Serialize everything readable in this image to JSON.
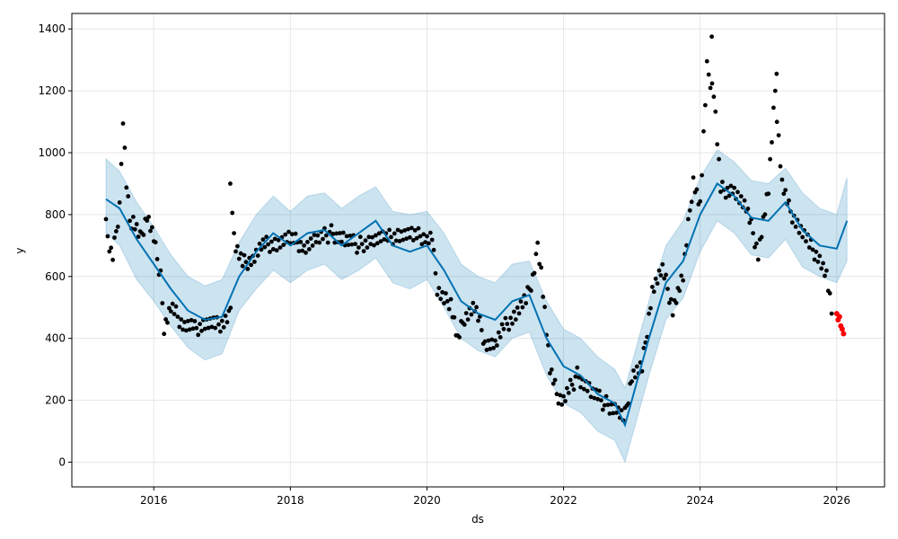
{
  "chart_data": {
    "type": "line",
    "title": "",
    "xlabel": "ds",
    "ylabel": "y",
    "xlim": [
      2014.8,
      2026.7
    ],
    "ylim": [
      -80,
      1450
    ],
    "x_ticks": [
      2016,
      2018,
      2020,
      2022,
      2024,
      2026
    ],
    "x_tick_labels": [
      "2016",
      "2018",
      "2020",
      "2022",
      "2024",
      "2026"
    ],
    "y_ticks": [
      0,
      200,
      400,
      600,
      800,
      1000,
      1200,
      1400
    ],
    "y_tick_labels": [
      "0",
      "200",
      "400",
      "600",
      "800",
      "1000",
      "1200",
      "1400"
    ],
    "grid": true,
    "colors": {
      "forecast": "#0072B2",
      "band": "#0072B2",
      "observed": "#000000",
      "recent": "#ff0000"
    },
    "forecast": {
      "x": [
        2015.3,
        2015.5,
        2015.75,
        2016.0,
        2016.25,
        2016.5,
        2016.75,
        2017.0,
        2017.25,
        2017.5,
        2017.75,
        2018.0,
        2018.25,
        2018.5,
        2018.75,
        2019.0,
        2019.25,
        2019.5,
        2019.75,
        2020.0,
        2020.25,
        2020.5,
        2020.75,
        2021.0,
        2021.25,
        2021.5,
        2021.75,
        2022.0,
        2022.25,
        2022.5,
        2022.75,
        2022.9,
        2023.0,
        2023.25,
        2023.5,
        2023.75,
        2024.0,
        2024.25,
        2024.5,
        2024.75,
        2025.0,
        2025.25,
        2025.5,
        2025.75,
        2026.0,
        2026.15
      ],
      "yhat": [
        850,
        820,
        720,
        640,
        560,
        490,
        460,
        470,
        600,
        680,
        740,
        700,
        740,
        750,
        700,
        740,
        780,
        700,
        680,
        700,
        620,
        520,
        480,
        460,
        520,
        540,
        400,
        310,
        280,
        220,
        190,
        120,
        200,
        400,
        580,
        650,
        800,
        900,
        860,
        790,
        780,
        840,
        750,
        700,
        690,
        780
      ],
      "lower": [
        740,
        700,
        590,
        520,
        440,
        370,
        330,
        350,
        490,
        560,
        620,
        580,
        620,
        640,
        590,
        620,
        660,
        580,
        560,
        590,
        500,
        400,
        360,
        340,
        400,
        420,
        280,
        190,
        160,
        100,
        70,
        0,
        80,
        280,
        460,
        530,
        680,
        780,
        740,
        670,
        660,
        720,
        630,
        600,
        580,
        650
      ],
      "upper": [
        980,
        940,
        840,
        760,
        670,
        600,
        570,
        590,
        710,
        800,
        860,
        810,
        860,
        870,
        820,
        860,
        890,
        810,
        800,
        810,
        740,
        640,
        600,
        580,
        640,
        650,
        520,
        430,
        400,
        340,
        300,
        240,
        320,
        520,
        700,
        780,
        920,
        1010,
        970,
        910,
        900,
        950,
        870,
        820,
        800,
        920
      ]
    },
    "observed_segments": [
      {
        "x": [
          2015.3,
          2015.35,
          2015.4,
          2015.45,
          2015.5,
          2015.55,
          2015.6,
          2015.65,
          2015.7,
          2015.8,
          2015.9,
          2016.0,
          2016.05,
          2016.1,
          2016.15,
          2016.25,
          2016.35,
          2016.45,
          2016.6,
          2016.75,
          2016.9,
          2017.0,
          2017.1,
          2017.15
        ],
        "y": [
          760,
          700,
          660,
          740,
          820,
          1120,
          900,
          780,
          780,
          720,
          800,
          720,
          650,
          600,
          440,
          500,
          470,
          440,
          430,
          450,
          440,
          450,
          470,
          540
        ]
      },
      {
        "x": [
          2017.15,
          2017.2,
          2017.3,
          2017.45,
          2017.6,
          2017.8,
          2018.0,
          2018.2,
          2018.4,
          2018.6,
          2018.8,
          2019.0,
          2019.2,
          2019.4,
          2019.6,
          2019.8,
          2020.0,
          2020.1
        ],
        "y": [
          780,
          700,
          640,
          660,
          700,
          710,
          720,
          700,
          720,
          740,
          720,
          700,
          720,
          720,
          740,
          730,
          730,
          740
        ]
      },
      {
        "x": [
          2020.1,
          2020.15,
          2020.25,
          2020.35,
          2020.45,
          2020.55,
          2020.7,
          2020.85,
          2021.0,
          2021.15,
          2021.3,
          2021.45,
          2021.55,
          2021.62,
          2021.7,
          2021.8,
          2021.9,
          2022.0,
          2022.2,
          2022.4,
          2022.6,
          2022.8,
          2022.9
        ],
        "y": [
          660,
          560,
          520,
          520,
          390,
          470,
          500,
          390,
          380,
          440,
          480,
          520,
          600,
          690,
          560,
          300,
          220,
          200,
          280,
          230,
          190,
          170,
          140
        ]
      },
      {
        "x": [
          2022.9,
          2023.0,
          2023.15,
          2023.3,
          2023.45,
          2023.6,
          2023.75,
          2023.9,
          2024.0,
          2024.1,
          2024.2,
          2024.3,
          2024.5,
          2024.7,
          2024.85,
          2025.0,
          2025.1,
          2025.2,
          2025.3,
          2025.45,
          2025.6,
          2025.75,
          2025.85,
          2025.95
        ],
        "y": [
          150,
          280,
          300,
          560,
          620,
          500,
          600,
          920,
          830,
          1270,
          1200,
          880,
          880,
          800,
          680,
          880,
          1200,
          900,
          820,
          760,
          700,
          660,
          600,
          440
        ]
      }
    ],
    "observed_spikes": [
      {
        "x": [
          2017.12
        ],
        "y": [
          900
        ]
      },
      {
        "x": [
          2024.17
        ],
        "y": [
          1375
        ]
      },
      {
        "x": [
          2025.12
        ],
        "y": [
          1255
        ]
      }
    ],
    "recent_points": {
      "x": [
        2026.0,
        2026.02,
        2026.04,
        2026.06,
        2026.08,
        2026.1
      ],
      "y": [
        480,
        460,
        470,
        440,
        430,
        415
      ]
    }
  }
}
